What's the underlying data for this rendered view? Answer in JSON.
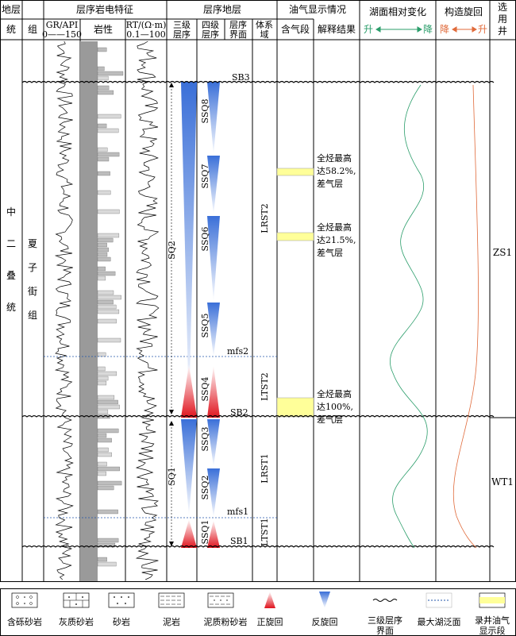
{
  "header": {
    "strata": "地层",
    "system": "统",
    "group": "组",
    "log_char": "层序岩电特征",
    "gr_label": "GR/API",
    "gr_range": "0——150",
    "lithology": "岩性",
    "rt_label": "RT/(Ω·m)",
    "rt_range": "0.1—100",
    "seq_strata": "层序地层",
    "third_order_1": "三级",
    "third_order_2": "层序",
    "fourth_order_1": "四级",
    "fourth_order_2": "层序",
    "seq_boundary_1": "层序",
    "seq_boundary_2": "界面",
    "systems_tract_1": "体系",
    "systems_tract_2": "域",
    "oil_gas": "油气显示情况",
    "gas_interval": "含气段",
    "interpretation": "解释结果",
    "lake_level": "湖面相对变化",
    "lake_rise": "升",
    "lake_fall": "降",
    "tectonic": "构造旋回",
    "tect_fall": "降",
    "tect_rise": "升",
    "well_1": "选",
    "well_2": "用",
    "well_3": "井"
  },
  "strat": {
    "series": [
      "中",
      "二",
      "叠",
      "统"
    ],
    "formation": [
      "夏",
      "子",
      "街",
      "组"
    ]
  },
  "sequences": {
    "sb3": "SB3",
    "sb2": "SB2",
    "sb1": "SB1",
    "mfs2": "mfs2",
    "mfs1": "mfs1",
    "sq2": "SQ2",
    "sq1": "SQ1",
    "ssq8": "SSQ8",
    "ssq7": "SSQ7",
    "ssq6": "SSQ6",
    "ssq5": "SSQ5",
    "ssq4": "SSQ4",
    "ssq3": "SSQ3",
    "ssq2": "SSQ2",
    "ssq1": "SSQ1",
    "lrst2": "LRST2",
    "ltst2": "LTST2",
    "lrst1": "LRST1",
    "ltst1": "LTST1"
  },
  "interp": [
    {
      "l1": "全烃最高",
      "l2": "达58.2%,",
      "l3": "差气层"
    },
    {
      "l1": "全烃最高",
      "l2": "达21.5%,",
      "l3": "差气层"
    },
    {
      "l1": "全烃最高",
      "l2": "达100%,",
      "l3": "差气层"
    }
  ],
  "wells": {
    "zs1": "ZS1",
    "wt1": "WT1"
  },
  "legend": [
    {
      "label": "含砾砂岩"
    },
    {
      "label": "灰质砂岩"
    },
    {
      "label": "砂岩"
    },
    {
      "label": "泥岩"
    },
    {
      "label": "泥质粉砂岩"
    },
    {
      "label": "正旋回"
    },
    {
      "label": "反旋回"
    },
    {
      "label": "三级层序",
      "label2": "界面"
    },
    {
      "label": "最大湖泛面"
    },
    {
      "label": "录井油气",
      "label2": "显示段"
    }
  ],
  "colors": {
    "blue": "#3a6fd8",
    "red": "#e0141e",
    "yellow": "#ffff99",
    "green": "#2a9d6a",
    "orange": "#e06a3a",
    "dash": "#2255aa"
  }
}
